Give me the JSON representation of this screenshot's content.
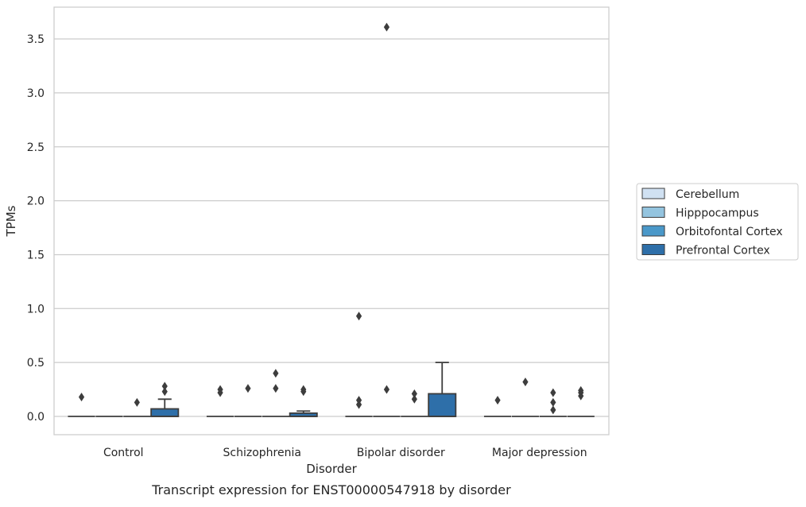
{
  "chart_data": {
    "type": "box",
    "title": "",
    "caption": "Transcript expression for ENST00000547918 by disorder",
    "xlabel": "Disorder",
    "ylabel": "TPMs",
    "ylim": [
      -0.18,
      3.8
    ],
    "yticks": [
      "0.0",
      "0.5",
      "1.0",
      "1.5",
      "2.0",
      "2.5",
      "3.0",
      "3.5"
    ],
    "ytick_values": [
      0.0,
      0.5,
      1.0,
      1.5,
      2.0,
      2.5,
      3.0,
      3.5
    ],
    "categories": [
      "Control",
      "Schizophrenia",
      "Bipolar disorder",
      "Major depression"
    ],
    "grid": "horizontal",
    "legend_position": "right",
    "series": [
      {
        "name": "Cerebellum",
        "color": "#d0e1f2",
        "boxes": [
          {
            "q1": 0,
            "median": 0,
            "q3": 0,
            "whisker_low": 0,
            "whisker_high": 0,
            "outliers": [
              0.18
            ]
          },
          {
            "q1": 0,
            "median": 0,
            "q3": 0,
            "whisker_low": 0,
            "whisker_high": 0,
            "outliers": [
              0.22,
              0.25
            ]
          },
          {
            "q1": 0,
            "median": 0,
            "q3": 0,
            "whisker_low": 0,
            "whisker_high": 0,
            "outliers": [
              0.11,
              0.15,
              0.93
            ]
          },
          {
            "q1": 0,
            "median": 0,
            "q3": 0,
            "whisker_low": 0,
            "whisker_high": 0,
            "outliers": [
              0.15
            ]
          }
        ]
      },
      {
        "name": "Hipppocampus",
        "color": "#94c4df",
        "boxes": [
          {
            "q1": 0,
            "median": 0,
            "q3": 0,
            "whisker_low": 0,
            "whisker_high": 0,
            "outliers": []
          },
          {
            "q1": 0,
            "median": 0,
            "q3": 0,
            "whisker_low": 0,
            "whisker_high": 0,
            "outliers": [
              0.26
            ]
          },
          {
            "q1": 0,
            "median": 0,
            "q3": 0,
            "whisker_low": 0,
            "whisker_high": 0,
            "outliers": [
              0.25,
              3.61
            ]
          },
          {
            "q1": 0,
            "median": 0,
            "q3": 0,
            "whisker_low": 0,
            "whisker_high": 0,
            "outliers": [
              0.32
            ]
          }
        ]
      },
      {
        "name": "Orbitofontal Cortex",
        "color": "#4a98c9",
        "boxes": [
          {
            "q1": 0,
            "median": 0,
            "q3": 0,
            "whisker_low": 0,
            "whisker_high": 0,
            "outliers": [
              0.13
            ]
          },
          {
            "q1": 0,
            "median": 0,
            "q3": 0,
            "whisker_low": 0,
            "whisker_high": 0,
            "outliers": [
              0.26,
              0.4
            ]
          },
          {
            "q1": 0,
            "median": 0,
            "q3": 0,
            "whisker_low": 0,
            "whisker_high": 0,
            "outliers": [
              0.16,
              0.21
            ]
          },
          {
            "q1": 0,
            "median": 0,
            "q3": 0,
            "whisker_low": 0,
            "whisker_high": 0,
            "outliers": [
              0.06,
              0.13,
              0.22
            ]
          }
        ]
      },
      {
        "name": "Prefrontal Cortex",
        "color": "#2e6fa9",
        "boxes": [
          {
            "q1": 0,
            "median": 0,
            "q3": 0.07,
            "whisker_low": 0,
            "whisker_high": 0.16,
            "outliers": [
              0.23,
              0.28
            ]
          },
          {
            "q1": 0,
            "median": 0,
            "q3": 0.03,
            "whisker_low": 0,
            "whisker_high": 0.05,
            "outliers": [
              0.23,
              0.25
            ]
          },
          {
            "q1": 0,
            "median": 0,
            "q3": 0.21,
            "whisker_low": 0,
            "whisker_high": 0.5,
            "outliers": []
          },
          {
            "q1": 0,
            "median": 0,
            "q3": 0,
            "whisker_low": 0,
            "whisker_high": 0,
            "outliers": [
              0.19,
              0.22,
              0.24
            ]
          }
        ]
      }
    ]
  }
}
